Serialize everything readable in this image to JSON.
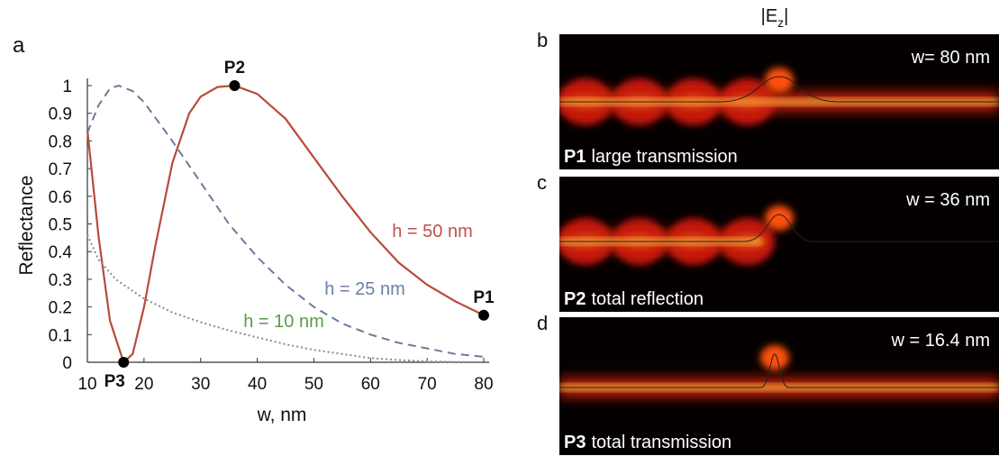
{
  "chart_data": {
    "type": "line",
    "panel_letter": "a",
    "xlabel": "w, nm",
    "ylabel": "Reflectance",
    "xlim": [
      10,
      80
    ],
    "ylim": [
      0,
      1
    ],
    "xticks": [
      10,
      20,
      30,
      40,
      50,
      60,
      70,
      80
    ],
    "yticks": [
      0,
      0.1,
      0.2,
      0.3,
      0.4,
      0.5,
      0.6,
      0.7,
      0.8,
      0.9,
      1
    ],
    "series": [
      {
        "name": "h = 50 nm",
        "color": "#b94a3c",
        "label_color": "#c0504d",
        "style": "solid",
        "x": [
          10,
          12,
          14,
          16.4,
          18,
          20,
          22,
          25,
          28,
          30,
          33,
          36,
          40,
          45,
          50,
          55,
          60,
          65,
          70,
          75,
          80
        ],
        "values": [
          0.84,
          0.45,
          0.15,
          0,
          0.03,
          0.2,
          0.42,
          0.72,
          0.9,
          0.96,
          0.995,
          1,
          0.97,
          0.88,
          0.74,
          0.6,
          0.47,
          0.36,
          0.28,
          0.22,
          0.17
        ]
      },
      {
        "name": "h = 25 nm",
        "color": "#6b7a99",
        "label_color": "#6b7fa8",
        "style": "dashed",
        "x": [
          10,
          12,
          14,
          15.5,
          18,
          20,
          25,
          30,
          35,
          40,
          45,
          50,
          55,
          60,
          65,
          70,
          75,
          80
        ],
        "values": [
          0.83,
          0.93,
          0.99,
          1,
          0.98,
          0.94,
          0.8,
          0.65,
          0.5,
          0.38,
          0.28,
          0.2,
          0.14,
          0.1,
          0.07,
          0.05,
          0.03,
          0.02
        ]
      },
      {
        "name": "h = 10 nm",
        "color": "#8a8a8a",
        "label_color": "#5a9a4a",
        "style": "dotted",
        "x": [
          10,
          12,
          15,
          20,
          25,
          30,
          35,
          40,
          45,
          50,
          55,
          60,
          65,
          70,
          75,
          80
        ],
        "values": [
          0.46,
          0.37,
          0.3,
          0.23,
          0.18,
          0.145,
          0.115,
          0.09,
          0.065,
          0.045,
          0.03,
          0.015,
          0.008,
          0.003,
          0.001,
          0
        ]
      }
    ],
    "points": [
      {
        "label": "P1",
        "x": 80,
        "y": 0.17
      },
      {
        "label": "P2",
        "x": 36,
        "y": 1
      },
      {
        "label": "P3",
        "x": 16.4,
        "y": 0
      }
    ]
  },
  "field_header": {
    "text": "|E",
    "subscript": "z",
    "suffix": "|"
  },
  "panels": [
    {
      "letter": "b",
      "width_label": "w= 80 nm",
      "tag": "P1",
      "caption": "large transmission"
    },
    {
      "letter": "c",
      "width_label": "w = 36 nm",
      "tag": "P2",
      "caption": "total reflection"
    },
    {
      "letter": "d",
      "width_label": "w = 16.4 nm",
      "tag": "P3",
      "caption": "total transmission"
    }
  ]
}
